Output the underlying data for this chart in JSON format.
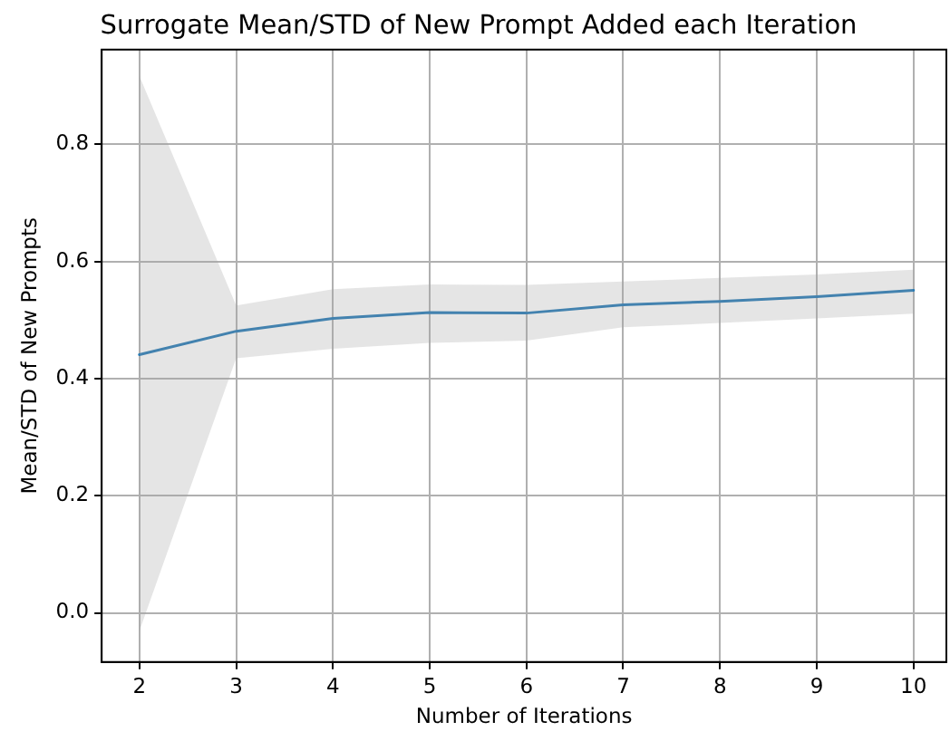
{
  "chart_data": {
    "type": "line",
    "title": "Surrogate Mean/STD of New Prompt Added each Iteration",
    "xlabel": "Number of Iterations",
    "ylabel": "Mean/STD of New Prompts",
    "x": [
      2,
      3,
      4,
      5,
      6,
      7,
      8,
      9,
      10
    ],
    "series": [
      {
        "color": "#1f77b4",
        "values": [
          0.441,
          0.481,
          0.503,
          0.513,
          0.512,
          0.526,
          0.532,
          0.54,
          0.551
        ],
        "lower": [
          -0.031,
          0.435,
          0.451,
          0.461,
          0.465,
          0.488,
          0.495,
          0.503,
          0.511
        ],
        "upper": [
          0.917,
          0.525,
          0.553,
          0.561,
          0.56,
          0.566,
          0.572,
          0.578,
          0.586
        ]
      }
    ],
    "xlim": [
      1.61,
      10.34
    ],
    "xticks": [
      2,
      3,
      4,
      5,
      6,
      7,
      8,
      9,
      10
    ],
    "ylim": [
      -0.084,
      0.962
    ],
    "yticks": [
      {
        "value": 0,
        "label": "0.0"
      },
      0.2,
      0.4,
      0.6,
      0.8
    ],
    "grid": true,
    "legend": false,
    "marker": "none",
    "line_style": "solid"
  }
}
